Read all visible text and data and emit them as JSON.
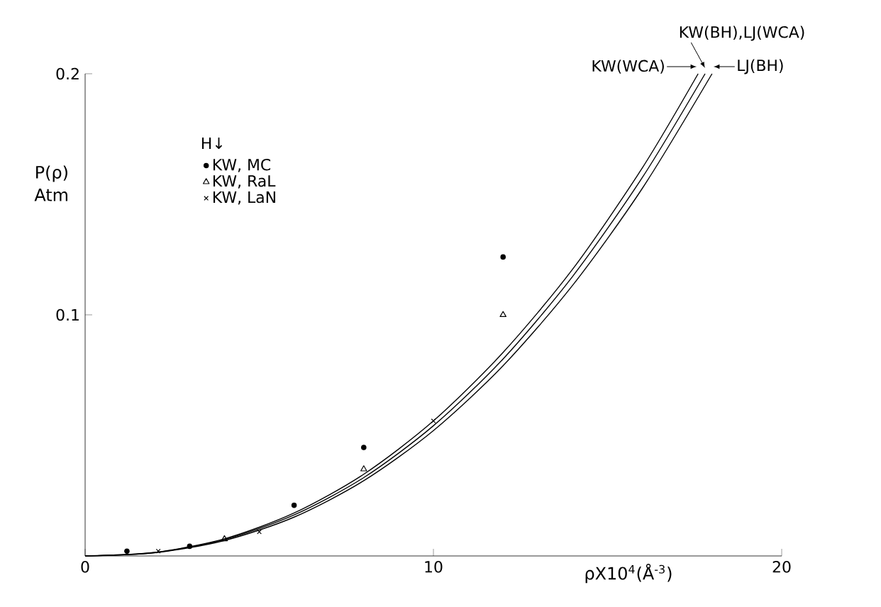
{
  "chart_data": {
    "type": "line",
    "xlabel": "ρX10$^{4}$(Å$^{-3}$)",
    "ylabel": "P(ρ) Atm",
    "legend_title": "H↓",
    "xlim": [
      0,
      20
    ],
    "ylim": [
      0,
      0.2
    ],
    "xticks": [
      0,
      10,
      20
    ],
    "yticks": [
      0.1,
      0.2
    ],
    "grid": false,
    "legend": "top left",
    "annotations": [
      {
        "text": "KW(WCA)",
        "x": 17.6,
        "y": 0.2
      },
      {
        "text": "KW(BH),LJ(WCA)",
        "x": 17.8,
        "y": 0.2
      },
      {
        "text": "LJ(BH)",
        "x": 18,
        "y": 0.2
      }
    ],
    "series": [
      {
        "color": "#000000",
        "x": [
          0,
          2,
          4,
          6,
          8,
          10,
          12,
          14,
          16,
          17.6
        ],
        "values": [
          0,
          0.0015,
          0.0071,
          0.0178,
          0.0339,
          0.056,
          0.0844,
          0.119,
          0.161,
          0.2
        ]
      },
      {
        "color": "#000000",
        "x": [
          0,
          2,
          4,
          6,
          8,
          10,
          12,
          14,
          16,
          17.8
        ],
        "values": [
          0,
          0.0014,
          0.0068,
          0.017,
          0.0325,
          0.054,
          0.0817,
          0.116,
          0.157,
          0.2
        ]
      },
      {
        "color": "#000000",
        "x": [
          0,
          2,
          4,
          6,
          8,
          10,
          12,
          14,
          16,
          18
        ],
        "values": [
          0,
          0.0013,
          0.0064,
          0.0161,
          0.0312,
          0.052,
          0.0789,
          0.1123,
          0.1525,
          0.2
        ]
      },
      {
        "name": "KW, MC",
        "type": "scatter",
        "marker": "circle",
        "color": "#000000",
        "x": [
          1.2,
          3,
          6,
          8,
          12
        ],
        "values": [
          0.002,
          0.004,
          0.021,
          0.045,
          0.124
        ]
      },
      {
        "name": "KW, RaL",
        "type": "scatter",
        "marker": "triangle",
        "color": "#000000",
        "x": [
          4,
          8,
          12
        ],
        "values": [
          0.007,
          0.036,
          0.1
        ]
      },
      {
        "name": "KW, LaN",
        "type": "scatter",
        "marker": "cross",
        "color": "#000000",
        "x": [
          2.1,
          5,
          10
        ],
        "values": [
          0.002,
          0.01,
          0.056
        ]
      }
    ]
  }
}
